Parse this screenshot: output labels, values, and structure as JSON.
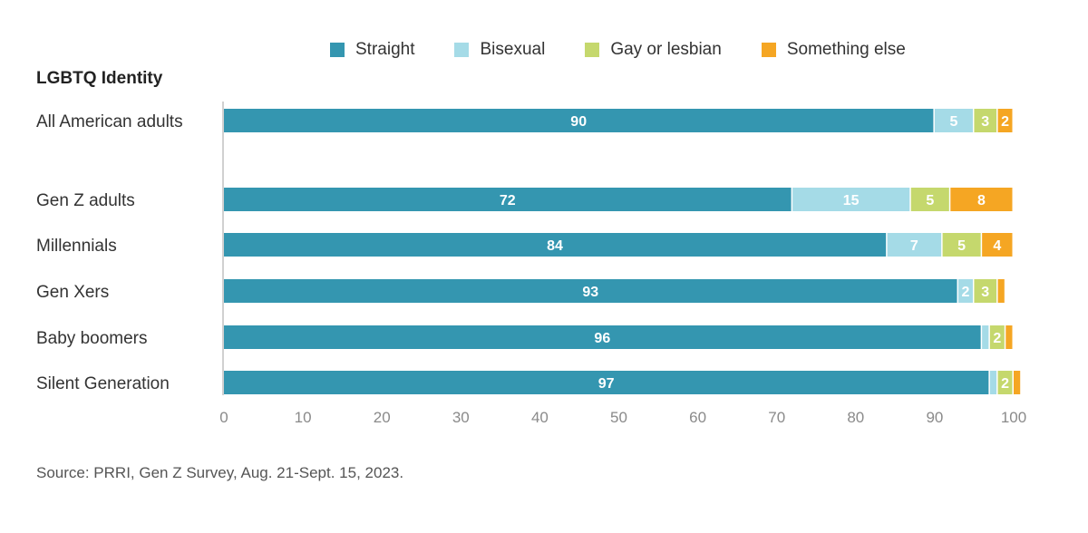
{
  "chart_data": {
    "type": "bar",
    "orientation": "horizontal",
    "stacked": true,
    "title": "LGBTQ Identity",
    "source": "Source: PRRI, Gen Z Survey, Aug. 21-Sept. 15, 2023.",
    "categories": [
      "All American adults",
      "Gen Z adults",
      "Millennials",
      "Gen Xers",
      "Baby boomers",
      "Silent Generation"
    ],
    "series": [
      {
        "name": "Straight",
        "color": "#3496b0",
        "values": [
          90,
          72,
          84,
          93,
          96,
          97
        ],
        "labels": [
          "90",
          "72",
          "84",
          "93",
          "96",
          "97"
        ]
      },
      {
        "name": "Bisexual",
        "color": "#a5dbe7",
        "values": [
          5,
          15,
          7,
          2,
          1,
          1
        ],
        "labels": [
          "5",
          "15",
          "7",
          "2",
          "",
          ""
        ]
      },
      {
        "name": "Gay or lesbian",
        "color": "#c5d86d",
        "values": [
          3,
          5,
          5,
          3,
          2,
          2
        ],
        "labels": [
          "3",
          "5",
          "5",
          "3",
          "2",
          "2"
        ]
      },
      {
        "name": "Something else",
        "color": "#f5a623",
        "values": [
          2,
          8,
          4,
          1,
          1,
          1
        ],
        "labels": [
          "2",
          "8",
          "4",
          "",
          "",
          ""
        ]
      }
    ],
    "xlim": [
      0,
      100
    ],
    "xticks": [
      "0",
      "10",
      "20",
      "30",
      "40",
      "50",
      "60",
      "70",
      "80",
      "90",
      "100"
    ],
    "legend_position": "top",
    "grid": false
  }
}
